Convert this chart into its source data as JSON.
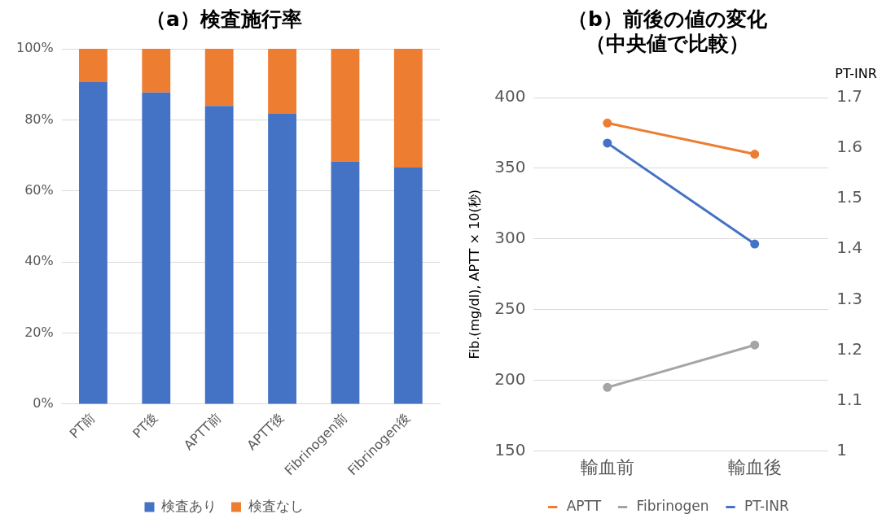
{
  "chart_data": [
    {
      "type": "bar",
      "title": "（a）検査施行率",
      "categories": [
        "PT前",
        "PT後",
        "APTT前",
        "APTT後",
        "Fibrinogen前",
        "Fibrinogen後"
      ],
      "stacked": true,
      "series": [
        {
          "name": "検査あり",
          "color": "#4472c4",
          "values": [
            90.6,
            87.7,
            83.9,
            81.7,
            68.3,
            66.6
          ]
        },
        {
          "name": "検査なし",
          "color": "#ed7d31",
          "values": [
            9.4,
            12.3,
            16.1,
            18.3,
            31.7,
            33.4
          ]
        }
      ],
      "ylim": [
        0,
        100
      ],
      "yticks": [
        {
          "value": 0,
          "label": "0%"
        },
        {
          "value": 20,
          "label": "20%"
        },
        {
          "value": 40,
          "label": "40%"
        },
        {
          "value": 60,
          "label": "60%"
        },
        {
          "value": 80,
          "label": "80%"
        },
        {
          "value": 100,
          "label": "100%"
        }
      ],
      "grid": "y",
      "legend": "bottom"
    },
    {
      "type": "line",
      "title": "（b）前後の値の変化",
      "subtitle": "（中央値で比較）",
      "categories": [
        "輸血前",
        "輸血後"
      ],
      "series": [
        {
          "name": "APTT",
          "color": "#ed7d31",
          "values": [
            382,
            360
          ]
        },
        {
          "name": "Fibrinogen",
          "color": "#a5a5a5",
          "values": [
            195,
            225
          ]
        },
        {
          "name": "PT-INR",
          "color": "#4472c4",
          "values": [
            1.61,
            1.41
          ],
          "axis": "y2"
        }
      ],
      "ylabel": "Fib.(mg/dl), APTT × 10(秒)",
      "y2label": "PT-INR",
      "ylim": [
        150,
        400
      ],
      "yticks": [
        150,
        200,
        250,
        300,
        350,
        400
      ],
      "y2lim": [
        1,
        1.7
      ],
      "y2ticks": [
        1,
        1.1,
        1.2,
        1.3,
        1.4,
        1.5,
        1.6,
        1.7
      ],
      "grid": "y",
      "legend": "bottom",
      "marker": "circle"
    }
  ]
}
